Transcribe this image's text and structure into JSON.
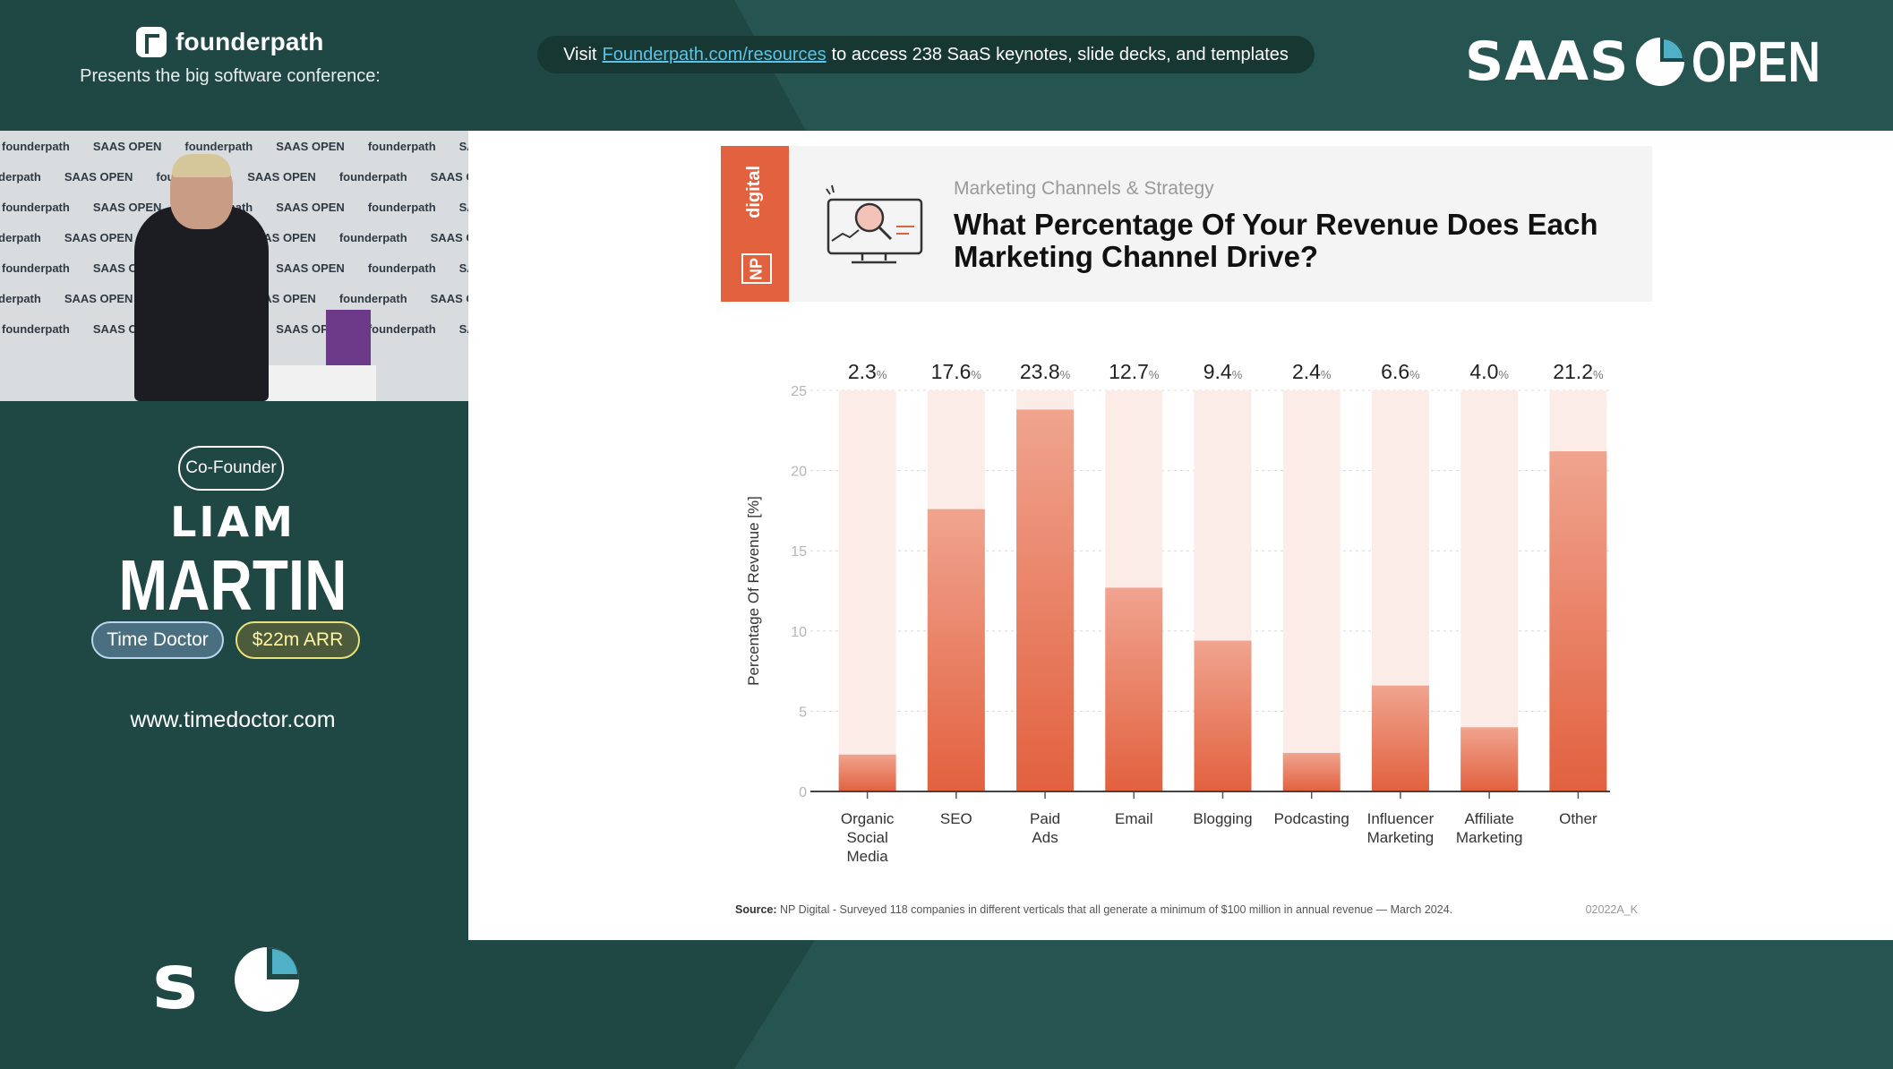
{
  "header": {
    "brand_name": "founderpath",
    "presents": "Presents the big software conference:",
    "visit_prefix": "Visit",
    "visit_link": "Founderpath.com/resources",
    "visit_suffix": "to access 238 SaaS keynotes, slide decks, and templates",
    "event_logo_left": "SAAS",
    "event_logo_right": "OPEN"
  },
  "video": {
    "backdrop_word_1": "founderpath",
    "backdrop_word_2": "SAAS",
    "backdrop_word_3": "OPEN"
  },
  "speaker": {
    "role": "Co-Founder",
    "first_name": "LIAM",
    "last_name": "MARTIN",
    "company": "Time Doctor",
    "arr": "$22m ARR",
    "website": "www.timedoctor.com"
  },
  "slide": {
    "brand_band": "digital",
    "brand_badge": "NP",
    "subtitle": "Marketing Channels & Strategy",
    "title": "What Percentage Of Your Revenue Does Each Marketing Channel Drive?",
    "source_label": "Source:",
    "source_text": "NP Digital - Surveyed 118 companies in different verticals that all generate a minimum of $100 million in annual revenue — March 2024.",
    "code": "02022A_K"
  },
  "colors": {
    "background": "#1f4744",
    "accent_orange": "#e2613f",
    "link_blue": "#5cc3e6",
    "arr_yellow": "#e9e27a"
  },
  "chart_data": {
    "type": "bar",
    "categories": [
      "Organic Social Media",
      "SEO",
      "Paid Ads",
      "Email",
      "Blogging",
      "Podcasting",
      "Influencer Marketing",
      "Affiliate Marketing",
      "Other"
    ],
    "values": [
      2.3,
      17.6,
      23.8,
      12.7,
      9.4,
      2.4,
      6.6,
      4.0,
      21.2
    ],
    "value_labels": [
      "2.3",
      "17.6",
      "23.8",
      "12.7",
      "9.4",
      "2.4",
      "6.6",
      "4.0",
      "21.2"
    ],
    "unit": "%",
    "ylabel": "Percentage Of Revenue [%]",
    "yticks": [
      0,
      5,
      10,
      15,
      20,
      25
    ],
    "ylim": [
      0,
      25
    ],
    "grid": true
  }
}
